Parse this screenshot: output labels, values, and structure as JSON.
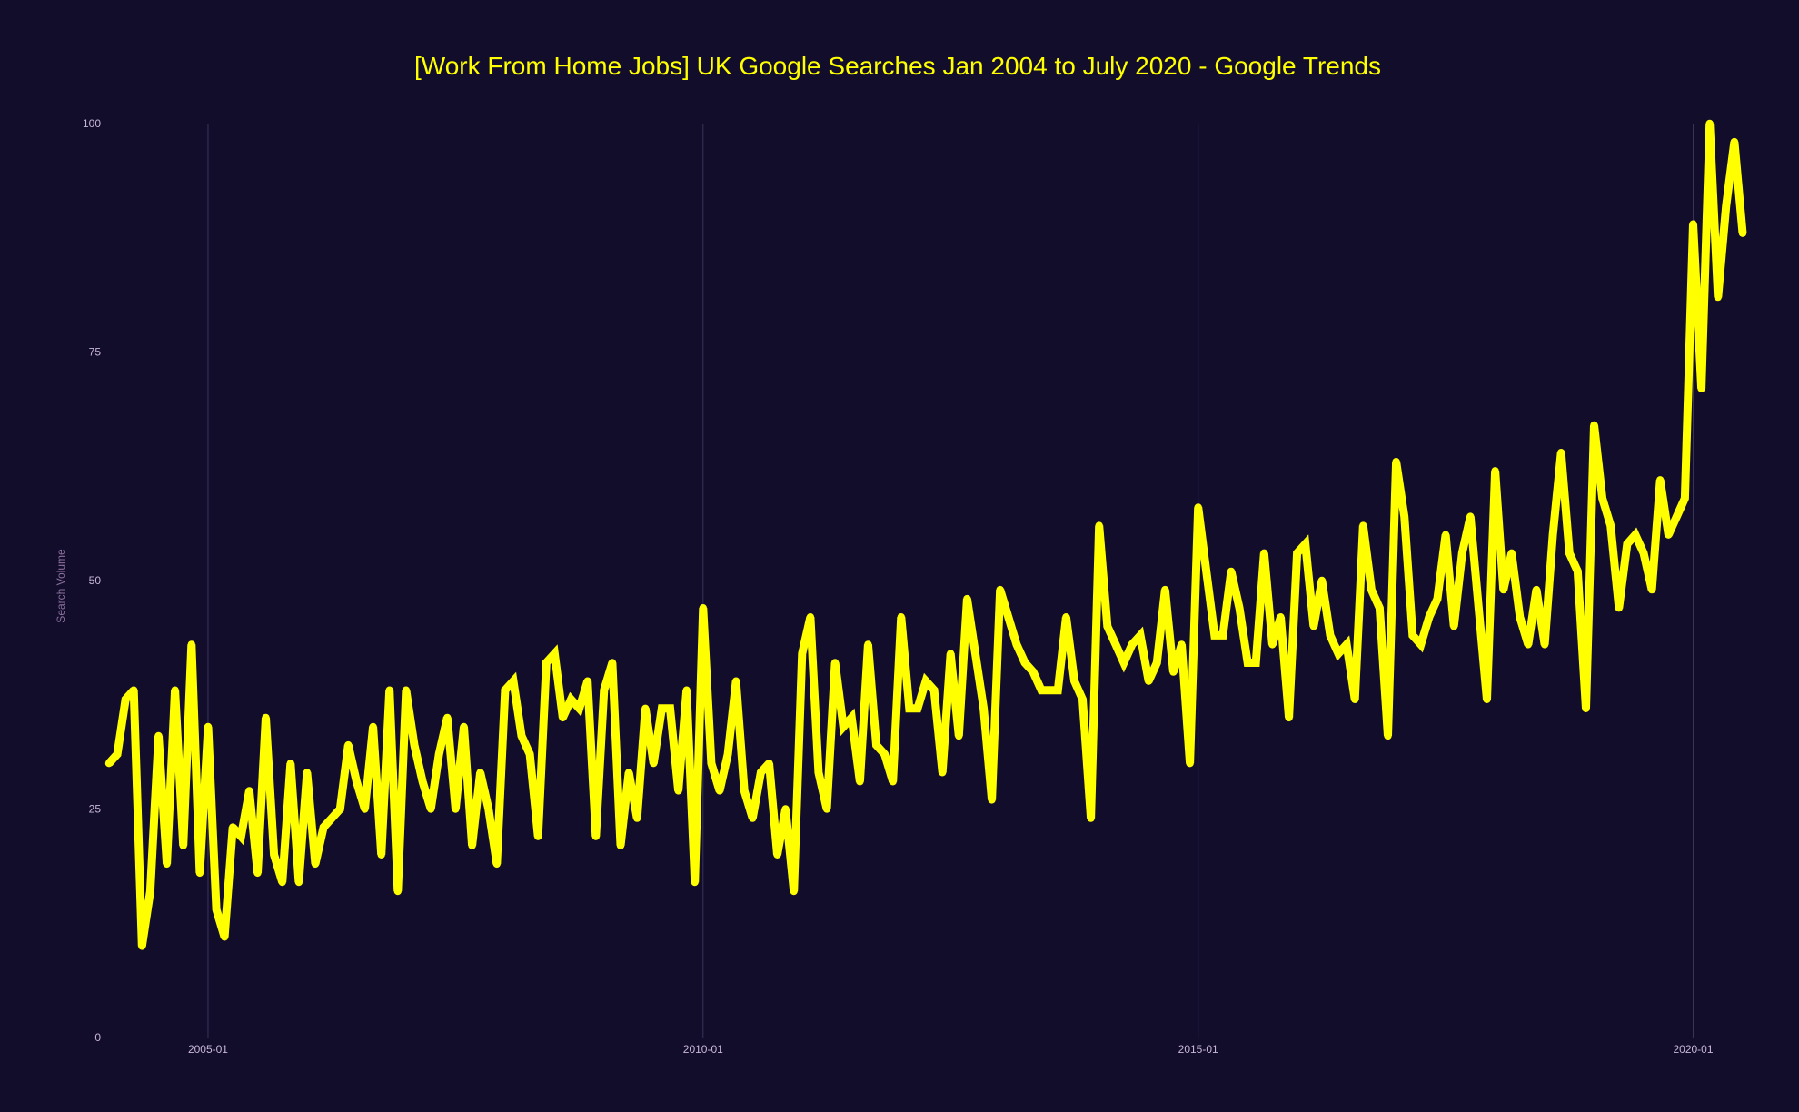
{
  "chart_data": {
    "type": "line",
    "title": "[Work From Home Jobs] UK Google Searches Jan 2004 to July 2020  - Google Trends",
    "xlabel": "",
    "ylabel": "Search Volume",
    "ylim": [
      0,
      100
    ],
    "xlim": [
      "2004-01",
      "2020-07"
    ],
    "y_ticks": [
      "0",
      "25",
      "50",
      "75",
      "100"
    ],
    "x_ticks": [
      "2005-01",
      "2010-01",
      "2015-01",
      "2020-01"
    ],
    "grid": "vertical",
    "colors": {
      "background": "#110d2b",
      "line": "#ffff00",
      "title": "#ffff00",
      "ticks": "#c9b6d6",
      "axis_label": "#8d6f9e",
      "grid": "#3a3458"
    },
    "series": [
      {
        "start": "2004-01",
        "frequency": "monthly",
        "values": [
          30,
          31,
          37,
          38,
          10,
          16,
          33,
          19,
          38,
          21,
          43,
          18,
          34,
          14,
          11,
          23,
          22,
          27,
          18,
          35,
          20,
          17,
          30,
          17,
          29,
          19,
          23,
          24,
          25,
          32,
          28,
          25,
          34,
          20,
          38,
          16,
          38,
          32,
          28,
          25,
          31,
          35,
          25,
          34,
          21,
          29,
          25,
          19,
          38,
          39,
          33,
          31,
          22,
          41,
          42,
          35,
          37,
          36,
          39,
          22,
          38,
          41,
          21,
          29,
          24,
          36,
          30,
          36,
          36,
          27,
          38,
          17,
          47,
          30,
          27,
          31,
          39,
          27,
          24,
          29,
          30,
          20,
          25,
          16,
          42,
          46,
          29,
          25,
          41,
          34,
          35,
          28,
          43,
          32,
          31,
          28,
          46,
          36,
          36,
          39,
          38,
          29,
          42,
          33,
          48,
          42,
          36,
          26,
          49,
          46,
          43,
          41,
          40,
          38,
          38,
          38,
          46,
          39,
          37,
          24,
          56,
          45,
          43,
          41,
          43,
          44,
          39,
          41,
          49,
          40,
          43,
          30,
          58,
          51,
          44,
          44,
          51,
          47,
          41,
          41,
          53,
          43,
          46,
          35,
          53,
          54,
          45,
          50,
          44,
          42,
          43,
          37,
          56,
          49,
          47,
          33,
          63,
          57,
          44,
          43,
          46,
          48,
          55,
          45,
          53,
          57,
          47,
          37,
          62,
          49,
          53,
          46,
          43,
          49,
          43,
          55,
          64,
          53,
          51,
          36,
          67,
          59,
          56,
          47,
          54,
          55,
          53,
          49,
          61,
          55,
          57,
          59,
          89,
          71,
          100,
          81,
          91,
          98,
          88
        ]
      }
    ]
  }
}
